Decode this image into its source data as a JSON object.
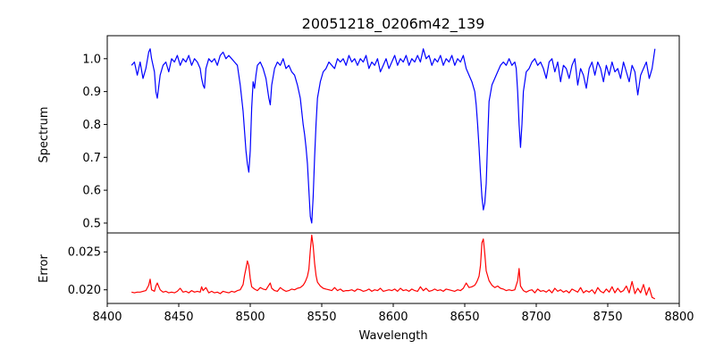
{
  "chart_data": [
    {
      "type": "line",
      "title": "20051218_0206m42_139",
      "xlabel": "",
      "ylabel": "Spectrum",
      "xlim": [
        8400,
        8800
      ],
      "ylim": [
        0.47,
        1.07
      ],
      "xticks": [],
      "yticks": [
        0.5,
        0.6,
        0.7,
        0.8,
        0.9,
        1.0
      ],
      "ytick_labels": [
        "0.5",
        "0.6",
        "0.7",
        "0.8",
        "0.9",
        "1.0"
      ],
      "grid": false,
      "series": [
        {
          "color": "#0000ff",
          "x": [
            8417,
            8419,
            8421,
            8423,
            8425,
            8427,
            8429,
            8430,
            8431,
            8433,
            8434,
            8435,
            8437,
            8439,
            8441,
            8443,
            8445,
            8447,
            8449,
            8451,
            8453,
            8455,
            8457,
            8459,
            8461,
            8463,
            8465,
            8466,
            8467,
            8468,
            8469,
            8471,
            8473,
            8475,
            8477,
            8479,
            8481,
            8483,
            8485,
            8487,
            8489,
            8491,
            8493,
            8495,
            8496,
            8497,
            8498,
            8499,
            8500,
            8501,
            8502,
            8503,
            8504,
            8505,
            8507,
            8509,
            8511,
            8513,
            8514,
            8515,
            8517,
            8519,
            8521,
            8523,
            8525,
            8527,
            8529,
            8531,
            8533,
            8535,
            8536,
            8537,
            8538,
            8539,
            8540,
            8541,
            8542,
            8543,
            8544,
            8545,
            8546,
            8547,
            8549,
            8551,
            8553,
            8555,
            8557,
            8559,
            8561,
            8563,
            8565,
            8567,
            8569,
            8571,
            8573,
            8575,
            8577,
            8579,
            8581,
            8583,
            8585,
            8587,
            8589,
            8591,
            8593,
            8595,
            8597,
            8599,
            8601,
            8603,
            8605,
            8607,
            8609,
            8611,
            8613,
            8615,
            8617,
            8619,
            8621,
            8623,
            8625,
            8627,
            8629,
            8631,
            8633,
            8635,
            8637,
            8639,
            8641,
            8643,
            8645,
            8647,
            8649,
            8651,
            8653,
            8655,
            8657,
            8658,
            8659,
            8660,
            8661,
            8662,
            8663,
            8664,
            8665,
            8666,
            8667,
            8669,
            8671,
            8673,
            8675,
            8677,
            8679,
            8681,
            8683,
            8685,
            8686,
            8687,
            8688,
            8689,
            8690,
            8691,
            8693,
            8695,
            8697,
            8699,
            8701,
            8703,
            8705,
            8707,
            8709,
            8711,
            8713,
            8715,
            8717,
            8719,
            8721,
            8723,
            8725,
            8727,
            8729,
            8731,
            8733,
            8735,
            8737,
            8739,
            8741,
            8743,
            8745,
            8747,
            8749,
            8751,
            8753,
            8755,
            8757,
            8759,
            8761,
            8763,
            8765,
            8767,
            8769,
            8771,
            8773,
            8775,
            8777,
            8779,
            8781,
            8783
          ],
          "values": [
            0.98,
            0.99,
            0.95,
            0.99,
            0.94,
            0.97,
            1.02,
            1.03,
            1.0,
            0.96,
            0.9,
            0.88,
            0.95,
            0.98,
            0.99,
            0.96,
            1.0,
            0.99,
            1.01,
            0.98,
            1.0,
            0.99,
            1.01,
            0.98,
            1.0,
            0.99,
            0.97,
            0.94,
            0.92,
            0.91,
            0.97,
            1.0,
            0.99,
            1.0,
            0.98,
            1.01,
            1.02,
            1.0,
            1.01,
            1.0,
            0.99,
            0.98,
            0.92,
            0.84,
            0.78,
            0.72,
            0.68,
            0.655,
            0.72,
            0.85,
            0.93,
            0.91,
            0.95,
            0.98,
            0.99,
            0.97,
            0.94,
            0.88,
            0.86,
            0.92,
            0.97,
            0.99,
            0.98,
            1.0,
            0.97,
            0.98,
            0.96,
            0.95,
            0.92,
            0.88,
            0.84,
            0.8,
            0.77,
            0.73,
            0.68,
            0.6,
            0.52,
            0.5,
            0.58,
            0.7,
            0.8,
            0.88,
            0.93,
            0.96,
            0.97,
            0.99,
            0.98,
            0.97,
            1.0,
            0.99,
            1.0,
            0.98,
            1.01,
            0.99,
            1.0,
            0.98,
            1.0,
            0.99,
            1.01,
            0.97,
            0.99,
            0.98,
            1.0,
            0.96,
            0.98,
            1.0,
            0.97,
            0.99,
            1.01,
            0.98,
            1.0,
            0.99,
            1.01,
            0.98,
            1.0,
            0.99,
            1.01,
            0.99,
            1.03,
            1.0,
            1.01,
            0.98,
            1.0,
            0.99,
            1.01,
            0.98,
            1.0,
            0.99,
            1.01,
            0.98,
            1.0,
            0.99,
            1.01,
            0.97,
            0.95,
            0.93,
            0.9,
            0.86,
            0.8,
            0.73,
            0.65,
            0.58,
            0.54,
            0.56,
            0.62,
            0.75,
            0.87,
            0.92,
            0.94,
            0.96,
            0.98,
            0.99,
            0.98,
            1.0,
            0.98,
            0.99,
            0.97,
            0.9,
            0.8,
            0.73,
            0.8,
            0.9,
            0.96,
            0.97,
            0.99,
            1.0,
            0.98,
            0.99,
            0.97,
            0.94,
            0.99,
            1.0,
            0.96,
            0.99,
            0.93,
            0.98,
            0.97,
            0.94,
            0.98,
            1.0,
            0.92,
            0.97,
            0.95,
            0.91,
            0.97,
            0.99,
            0.95,
            0.99,
            0.97,
            0.93,
            0.98,
            0.95,
            0.99,
            0.96,
            0.97,
            0.94,
            0.99,
            0.96,
            0.93,
            0.98,
            0.96,
            0.89,
            0.95,
            0.97,
            0.99,
            0.94,
            0.97,
            1.03
          ]
        }
      ]
    },
    {
      "type": "line",
      "title": "",
      "xlabel": "Wavelength",
      "ylabel": "Error",
      "xlim": [
        8400,
        8800
      ],
      "ylim": [
        0.0182,
        0.0275
      ],
      "xticks": [
        8400,
        8450,
        8500,
        8550,
        8600,
        8650,
        8700,
        8750,
        8800
      ],
      "xtick_labels": [
        "8400",
        "8450",
        "8500",
        "8550",
        "8600",
        "8650",
        "8700",
        "8750",
        "8800"
      ],
      "yticks": [
        0.02,
        0.025
      ],
      "ytick_labels": [
        "0.020",
        "0.025"
      ],
      "grid": false,
      "series": [
        {
          "color": "#ff0000",
          "x": [
            8417,
            8419,
            8421,
            8423,
            8425,
            8427,
            8429,
            8430,
            8431,
            8433,
            8434,
            8435,
            8437,
            8439,
            8441,
            8443,
            8445,
            8447,
            8449,
            8451,
            8453,
            8455,
            8457,
            8459,
            8461,
            8463,
            8465,
            8466,
            8467,
            8469,
            8471,
            8473,
            8475,
            8477,
            8479,
            8481,
            8483,
            8485,
            8487,
            8489,
            8491,
            8493,
            8495,
            8496,
            8497,
            8498,
            8499,
            8500,
            8501,
            8503,
            8505,
            8507,
            8509,
            8511,
            8513,
            8514,
            8515,
            8517,
            8519,
            8521,
            8523,
            8525,
            8527,
            8529,
            8531,
            8533,
            8535,
            8537,
            8538,
            8539,
            8540,
            8541,
            8542,
            8543,
            8544,
            8545,
            8546,
            8547,
            8549,
            8551,
            8553,
            8555,
            8557,
            8559,
            8561,
            8563,
            8565,
            8567,
            8569,
            8571,
            8573,
            8575,
            8577,
            8579,
            8581,
            8583,
            8585,
            8587,
            8589,
            8591,
            8593,
            8595,
            8597,
            8599,
            8601,
            8603,
            8605,
            8607,
            8609,
            8611,
            8613,
            8615,
            8617,
            8619,
            8621,
            8623,
            8625,
            8627,
            8629,
            8631,
            8633,
            8635,
            8637,
            8639,
            8641,
            8643,
            8645,
            8647,
            8649,
            8651,
            8653,
            8655,
            8657,
            8658,
            8659,
            8660,
            8661,
            8662,
            8663,
            8664,
            8665,
            8667,
            8669,
            8671,
            8673,
            8675,
            8677,
            8679,
            8681,
            8683,
            8685,
            8687,
            8688,
            8689,
            8691,
            8693,
            8695,
            8697,
            8699,
            8701,
            8703,
            8705,
            8707,
            8709,
            8711,
            8713,
            8715,
            8717,
            8719,
            8721,
            8723,
            8725,
            8727,
            8729,
            8731,
            8733,
            8735,
            8737,
            8739,
            8741,
            8743,
            8745,
            8747,
            8749,
            8751,
            8753,
            8755,
            8757,
            8759,
            8761,
            8763,
            8765,
            8767,
            8769,
            8771,
            8773,
            8775,
            8777,
            8779,
            8781,
            8783
          ],
          "values": [
            0.0197,
            0.0196,
            0.0197,
            0.0197,
            0.0198,
            0.0199,
            0.0206,
            0.0214,
            0.02,
            0.0198,
            0.0205,
            0.0209,
            0.02,
            0.0197,
            0.0198,
            0.0196,
            0.0197,
            0.0196,
            0.0198,
            0.0202,
            0.0197,
            0.0198,
            0.0196,
            0.0199,
            0.0197,
            0.0198,
            0.0197,
            0.0204,
            0.0199,
            0.0203,
            0.0196,
            0.0198,
            0.0196,
            0.0197,
            0.0195,
            0.0198,
            0.0197,
            0.0196,
            0.0198,
            0.0197,
            0.0199,
            0.02,
            0.0207,
            0.0219,
            0.0228,
            0.0238,
            0.0232,
            0.0215,
            0.0204,
            0.0201,
            0.0199,
            0.0203,
            0.0201,
            0.02,
            0.0206,
            0.0209,
            0.0202,
            0.0199,
            0.0198,
            0.0203,
            0.02,
            0.0198,
            0.0199,
            0.0201,
            0.02,
            0.0202,
            0.0203,
            0.0206,
            0.0209,
            0.0213,
            0.0218,
            0.0227,
            0.0252,
            0.0272,
            0.0258,
            0.0235,
            0.0219,
            0.021,
            0.0205,
            0.0202,
            0.0201,
            0.02,
            0.0199,
            0.0203,
            0.0199,
            0.0201,
            0.0198,
            0.0199,
            0.0199,
            0.02,
            0.0198,
            0.0201,
            0.02,
            0.0198,
            0.0199,
            0.0201,
            0.0198,
            0.02,
            0.0199,
            0.0202,
            0.0198,
            0.0199,
            0.02,
            0.0199,
            0.0201,
            0.0198,
            0.0202,
            0.0199,
            0.02,
            0.0198,
            0.0201,
            0.0199,
            0.0198,
            0.0204,
            0.0199,
            0.0202,
            0.0198,
            0.0199,
            0.0201,
            0.0199,
            0.02,
            0.0198,
            0.0201,
            0.02,
            0.0199,
            0.0198,
            0.02,
            0.0199,
            0.0202,
            0.0209,
            0.0203,
            0.0204,
            0.0206,
            0.0209,
            0.0213,
            0.0218,
            0.0232,
            0.0262,
            0.0267,
            0.0248,
            0.0225,
            0.0212,
            0.0206,
            0.0203,
            0.0205,
            0.0202,
            0.0201,
            0.0199,
            0.02,
            0.0199,
            0.02,
            0.0212,
            0.0228,
            0.0205,
            0.0199,
            0.0197,
            0.0199,
            0.02,
            0.0196,
            0.0201,
            0.0198,
            0.0199,
            0.0197,
            0.02,
            0.0196,
            0.0202,
            0.0198,
            0.02,
            0.0197,
            0.0199,
            0.0196,
            0.0201,
            0.0199,
            0.0197,
            0.0203,
            0.0196,
            0.0199,
            0.0197,
            0.02,
            0.0195,
            0.0203,
            0.0198,
            0.0196,
            0.0201,
            0.0197,
            0.0204,
            0.0196,
            0.0202,
            0.0197,
            0.0199,
            0.0205,
            0.0196,
            0.0211,
            0.0195,
            0.0202,
            0.0196,
            0.0207,
            0.0193,
            0.0203,
            0.019,
            0.0188
          ]
        }
      ]
    }
  ]
}
